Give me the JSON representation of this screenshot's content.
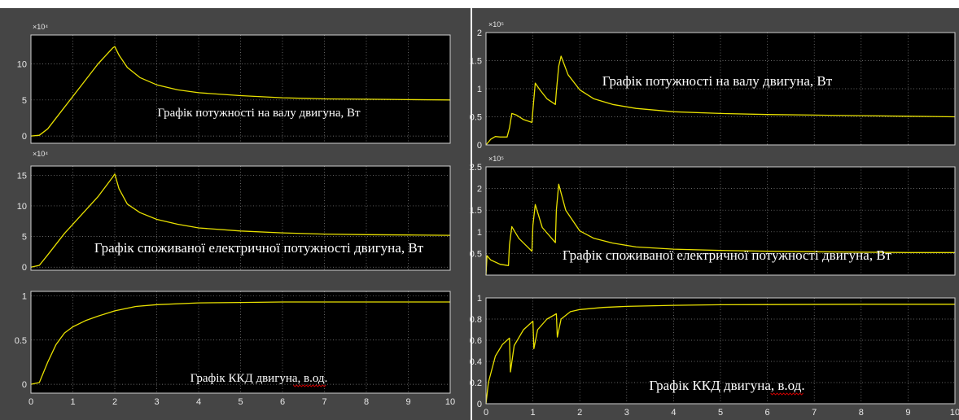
{
  "chart_data": [
    {
      "type": "line",
      "title": "Графік потужності на валу двигуна, Вт",
      "exponent": "×10⁴",
      "xlim": [
        0,
        10
      ],
      "ylim": [
        -1,
        14
      ],
      "yticks": [
        0,
        5,
        10
      ],
      "x_ticks": [],
      "grid": true,
      "series": [
        {
          "x": [
            0,
            0.2,
            0.4,
            0.8,
            1.2,
            1.6,
            1.95,
            2.0,
            2.1,
            2.3,
            2.6,
            3.0,
            3.5,
            4.0,
            5.0,
            6.0,
            7.0,
            8.0,
            9.0,
            10.0
          ],
          "values": [
            0,
            0.1,
            1,
            4,
            7,
            10,
            12.2,
            12.4,
            11.2,
            9.5,
            8.1,
            7.1,
            6.4,
            6.0,
            5.6,
            5.3,
            5.15,
            5.1,
            5.05,
            5.0
          ]
        }
      ]
    },
    {
      "type": "line",
      "title": "Графік споживаної електричної потужності двигуна, Вт",
      "exponent": "×10⁴",
      "xlim": [
        0,
        10
      ],
      "ylim": [
        -0.5,
        16.5
      ],
      "yticks": [
        0,
        5,
        10,
        15
      ],
      "x_ticks": [],
      "grid": true,
      "series": [
        {
          "x": [
            0,
            0.2,
            0.4,
            0.8,
            1.2,
            1.6,
            1.95,
            2.0,
            2.1,
            2.3,
            2.6,
            3.0,
            3.5,
            4.0,
            5.0,
            6.0,
            7.0,
            8.0,
            9.0,
            10.0
          ],
          "values": [
            0,
            0.3,
            2,
            5.5,
            8.5,
            11.5,
            14.7,
            15.2,
            12.8,
            10.3,
            8.9,
            7.8,
            7.0,
            6.4,
            5.9,
            5.6,
            5.4,
            5.3,
            5.25,
            5.2
          ]
        }
      ]
    },
    {
      "type": "line",
      "title": "Графік ККД двигуна, в.од.",
      "exponent": "",
      "xlim": [
        0,
        10
      ],
      "ylim": [
        -0.1,
        1.05
      ],
      "yticks": [
        0,
        0.5,
        1
      ],
      "x_ticks": [
        0,
        1,
        2,
        3,
        4,
        5,
        6,
        7,
        8,
        9,
        10
      ],
      "grid": true,
      "series": [
        {
          "x": [
            0,
            0.2,
            0.4,
            0.6,
            0.8,
            1.0,
            1.3,
            1.6,
            2.0,
            2.5,
            3.0,
            4.0,
            5.0,
            6.0,
            7.0,
            8.0,
            10.0
          ],
          "values": [
            0,
            0.02,
            0.25,
            0.45,
            0.58,
            0.65,
            0.72,
            0.77,
            0.83,
            0.88,
            0.9,
            0.92,
            0.925,
            0.93,
            0.93,
            0.93,
            0.93
          ]
        }
      ]
    },
    {
      "type": "line",
      "title": "Графік потужності на валу двигуна, Вт",
      "exponent": "×10⁵",
      "xlim": [
        0,
        10
      ],
      "ylim": [
        0,
        2
      ],
      "yticks": [
        0,
        0.5,
        1,
        1.5,
        2
      ],
      "x_ticks": [],
      "grid": true,
      "series": [
        {
          "x": [
            0,
            0.1,
            0.2,
            0.3,
            0.45,
            0.5,
            0.55,
            0.65,
            0.8,
            0.98,
            1.0,
            1.05,
            1.15,
            1.3,
            1.48,
            1.5,
            1.55,
            1.6,
            1.75,
            2.0,
            2.3,
            2.7,
            3.2,
            4.0,
            5.0,
            6.0,
            7.0,
            8.0,
            9.0,
            10.0
          ],
          "values": [
            0,
            0.1,
            0.15,
            0.14,
            0.14,
            0.3,
            0.56,
            0.53,
            0.45,
            0.4,
            0.62,
            1.1,
            0.98,
            0.82,
            0.72,
            0.95,
            1.4,
            1.58,
            1.25,
            0.98,
            0.82,
            0.72,
            0.65,
            0.59,
            0.56,
            0.54,
            0.53,
            0.52,
            0.51,
            0.5
          ]
        }
      ]
    },
    {
      "type": "line",
      "title": "Графік споживаної електричної потужності двигуна, Вт",
      "exponent": "×10⁵",
      "xlim": [
        0,
        10
      ],
      "ylim": [
        0,
        2.5
      ],
      "yticks": [
        0.5,
        1,
        1.5,
        2,
        2.5
      ],
      "x_ticks": [],
      "grid": true,
      "series": [
        {
          "x": [
            0,
            0.02,
            0.1,
            0.3,
            0.48,
            0.5,
            0.55,
            0.7,
            0.98,
            1.0,
            1.05,
            1.2,
            1.48,
            1.5,
            1.55,
            1.7,
            2.0,
            2.3,
            2.7,
            3.2,
            4.0,
            5.0,
            6.0,
            7.0,
            8.0,
            9.0,
            10.0
          ],
          "values": [
            0,
            0.45,
            0.35,
            0.25,
            0.22,
            0.7,
            1.12,
            0.85,
            0.55,
            1.15,
            1.63,
            1.1,
            0.75,
            1.5,
            2.1,
            1.5,
            1.02,
            0.85,
            0.74,
            0.65,
            0.6,
            0.57,
            0.55,
            0.54,
            0.53,
            0.52,
            0.52
          ]
        }
      ]
    },
    {
      "type": "line",
      "title": "Графік ККД двигуна, в.од.",
      "exponent": "",
      "xlim": [
        0,
        10
      ],
      "ylim": [
        0,
        1
      ],
      "yticks": [
        0,
        0.2,
        0.4,
        0.6,
        0.8,
        1
      ],
      "x_ticks": [
        0,
        1,
        2,
        3,
        4,
        5,
        6,
        7,
        8,
        9,
        10
      ],
      "grid": true,
      "series": [
        {
          "x": [
            0,
            0.05,
            0.2,
            0.35,
            0.5,
            0.52,
            0.6,
            0.8,
            1.0,
            1.02,
            1.1,
            1.3,
            1.5,
            1.52,
            1.6,
            1.8,
            2.0,
            2.5,
            3.0,
            4.0,
            5.0,
            6.0,
            8.0,
            10.0
          ],
          "values": [
            0,
            0.2,
            0.45,
            0.56,
            0.62,
            0.3,
            0.55,
            0.7,
            0.78,
            0.52,
            0.7,
            0.8,
            0.85,
            0.63,
            0.8,
            0.87,
            0.89,
            0.91,
            0.92,
            0.93,
            0.935,
            0.937,
            0.94,
            0.94
          ]
        }
      ]
    }
  ]
}
